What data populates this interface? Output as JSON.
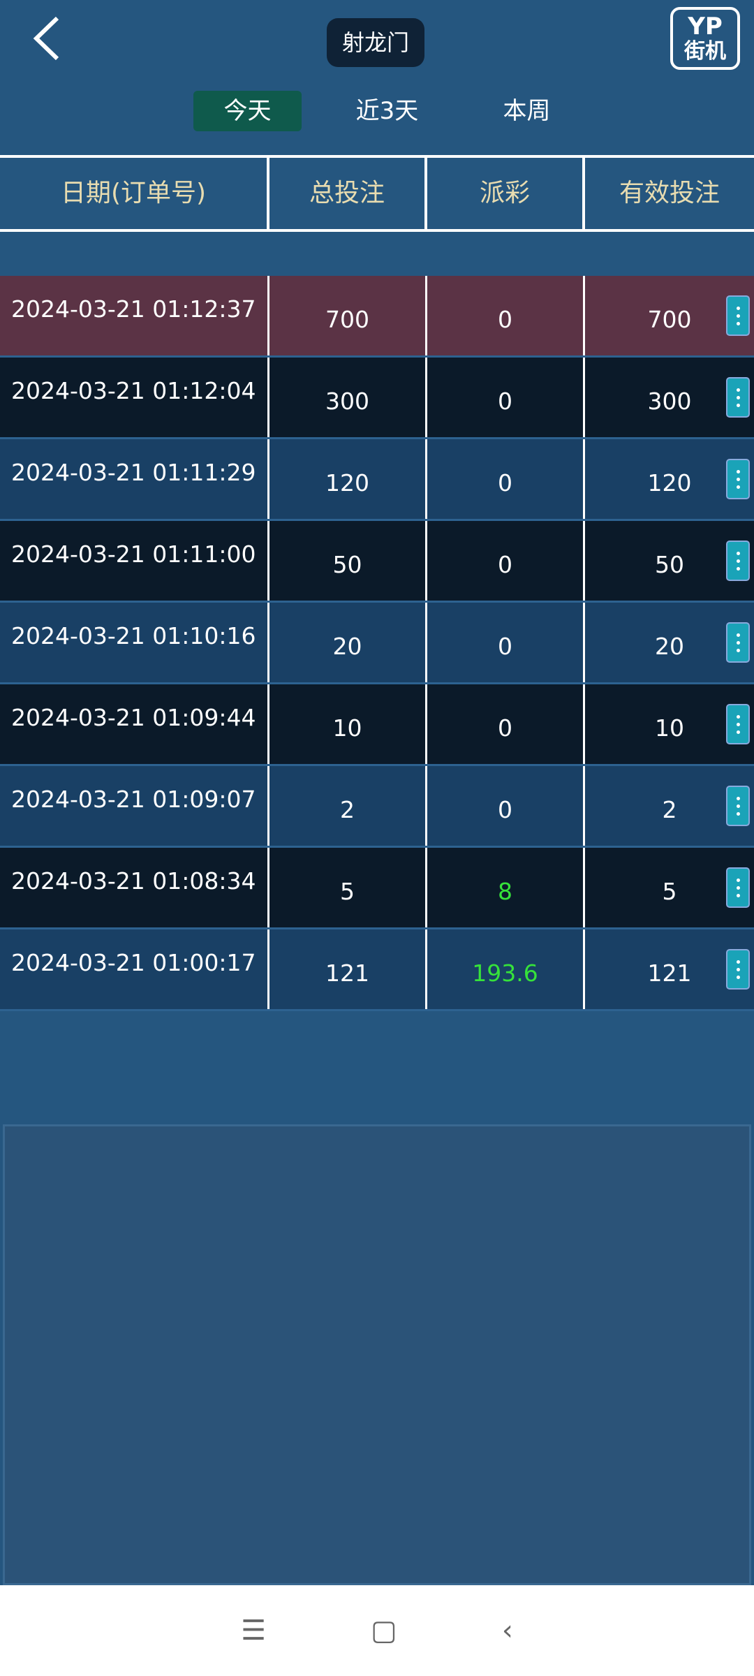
{
  "header": {
    "title": "射龙门",
    "logo_text": [
      "YP",
      "街机"
    ]
  },
  "tabs": [
    {
      "label": "今天",
      "active": true
    },
    {
      "label": "近3天",
      "active": false
    },
    {
      "label": "本周",
      "active": false
    }
  ],
  "table": {
    "columns": [
      "日期(订单号)",
      "总投注",
      "派彩",
      "有效投注"
    ],
    "rows": [
      {
        "date": "2024-03-21 01:12:37",
        "bet": "700",
        "payout": "0",
        "valid": "700"
      },
      {
        "date": "2024-03-21 01:12:04",
        "bet": "300",
        "payout": "0",
        "valid": "300"
      },
      {
        "date": "2024-03-21 01:11:29",
        "bet": "120",
        "payout": "0",
        "valid": "120"
      },
      {
        "date": "2024-03-21 01:11:00",
        "bet": "50",
        "payout": "0",
        "valid": "50"
      },
      {
        "date": "2024-03-21 01:10:16",
        "bet": "20",
        "payout": "0",
        "valid": "20"
      },
      {
        "date": "2024-03-21 01:09:44",
        "bet": "10",
        "payout": "0",
        "valid": "10"
      },
      {
        "date": "2024-03-21 01:09:07",
        "bet": "2",
        "payout": "0",
        "valid": "2"
      },
      {
        "date": "2024-03-21 01:08:34",
        "bet": "5",
        "payout": "8",
        "valid": "5",
        "win": true
      },
      {
        "date": "2024-03-21 01:00:17",
        "bet": "121",
        "payout": "193.6",
        "valid": "121",
        "win": true
      }
    ]
  },
  "colors": {
    "active_tab": "#0f5a4c",
    "win": "#36e23a",
    "detail_button": "#1aa3b8"
  },
  "navbar": {
    "icons": [
      "menu-icon",
      "home-icon",
      "back-icon"
    ]
  }
}
